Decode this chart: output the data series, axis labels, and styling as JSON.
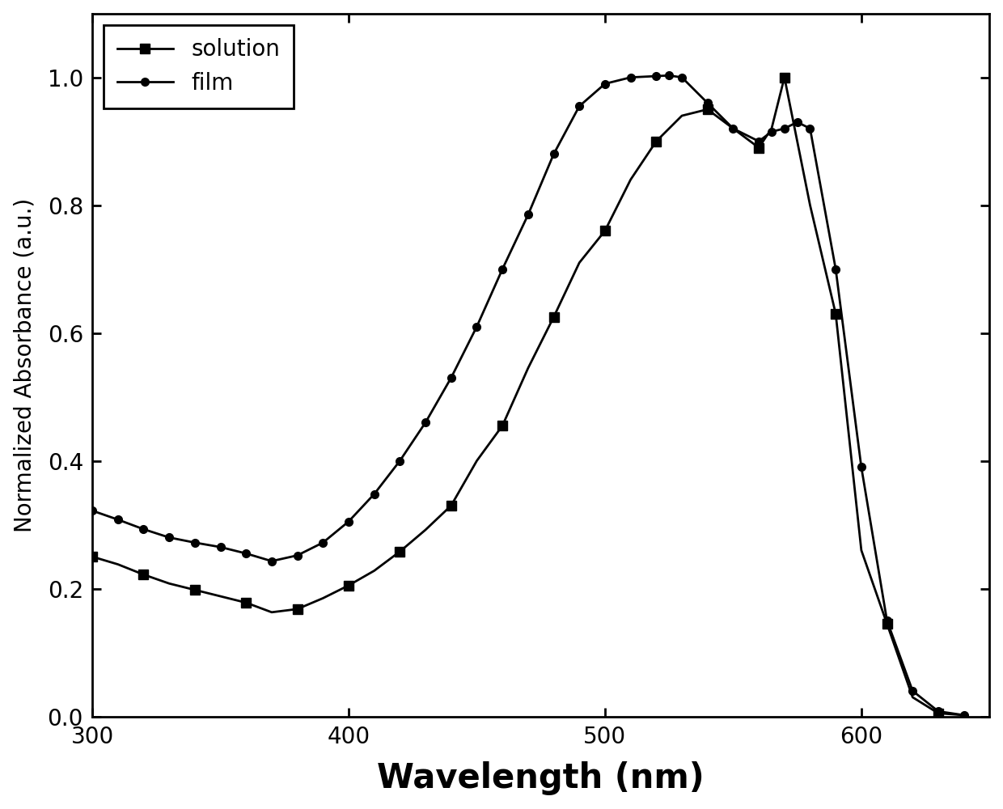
{
  "title": "",
  "xlabel": "Wavelength (nm)",
  "ylabel": "Normalized Absorbance (a.u.)",
  "xlim": [
    300,
    650
  ],
  "ylim": [
    0,
    1.1
  ],
  "yticks": [
    0.0,
    0.2,
    0.4,
    0.6,
    0.8,
    1.0
  ],
  "xticks": [
    300,
    400,
    500,
    600
  ],
  "solution_x": [
    300,
    310,
    320,
    330,
    340,
    350,
    360,
    370,
    380,
    390,
    400,
    410,
    420,
    430,
    440,
    450,
    460,
    470,
    480,
    490,
    500,
    510,
    520,
    530,
    540,
    550,
    560,
    565,
    570,
    580,
    590,
    600,
    610,
    620,
    630,
    640
  ],
  "solution_y": [
    0.25,
    0.238,
    0.222,
    0.208,
    0.198,
    0.188,
    0.178,
    0.163,
    0.168,
    0.185,
    0.205,
    0.228,
    0.258,
    0.292,
    0.33,
    0.4,
    0.455,
    0.545,
    0.625,
    0.71,
    0.76,
    0.84,
    0.9,
    0.94,
    0.95,
    0.92,
    0.89,
    0.92,
    1.0,
    0.8,
    0.63,
    0.26,
    0.145,
    0.03,
    0.005,
    0.002
  ],
  "film_x": [
    300,
    310,
    320,
    330,
    340,
    350,
    360,
    370,
    380,
    390,
    400,
    410,
    420,
    430,
    440,
    450,
    460,
    470,
    480,
    490,
    500,
    510,
    520,
    525,
    530,
    540,
    550,
    560,
    565,
    570,
    575,
    580,
    590,
    600,
    610,
    620,
    630,
    640
  ],
  "film_y": [
    0.322,
    0.308,
    0.293,
    0.28,
    0.272,
    0.265,
    0.255,
    0.243,
    0.252,
    0.272,
    0.305,
    0.348,
    0.4,
    0.46,
    0.53,
    0.61,
    0.7,
    0.785,
    0.88,
    0.955,
    0.99,
    1.0,
    1.002,
    1.003,
    1.0,
    0.96,
    0.92,
    0.9,
    0.915,
    0.92,
    0.93,
    0.92,
    0.7,
    0.39,
    0.15,
    0.04,
    0.008,
    0.002
  ],
  "line_color": "#000000",
  "background_color": "#ffffff",
  "legend_labels": [
    "solution",
    "film"
  ],
  "marker_solution": "s",
  "marker_film": "o",
  "marker_size_solution": 8,
  "marker_size_film": 7,
  "linewidth": 2.0,
  "xlabel_fontsize": 30,
  "ylabel_fontsize": 20,
  "tick_fontsize": 20,
  "legend_fontsize": 20,
  "fig_width": 12.4,
  "fig_height": 10.0,
  "fig_dpi": 100
}
